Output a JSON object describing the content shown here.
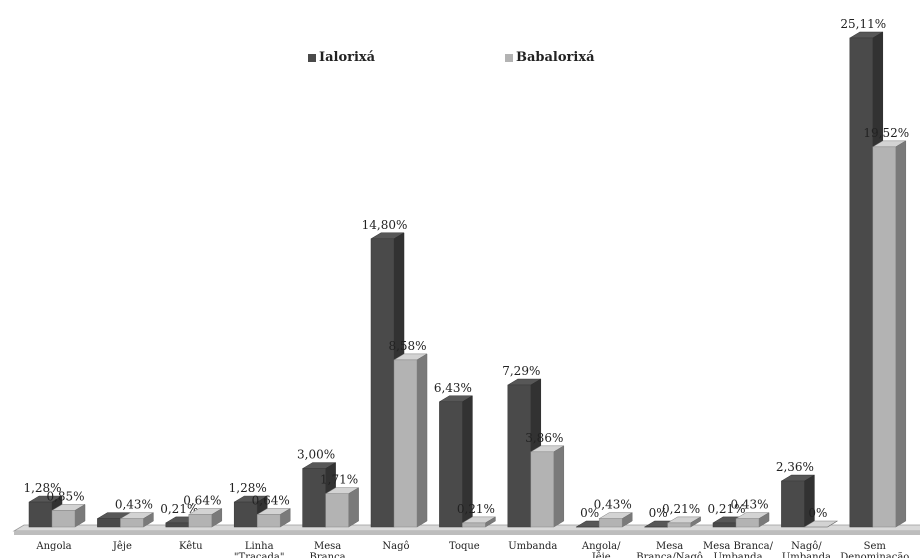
{
  "chart_data": {
    "type": "bar",
    "title": "",
    "xlabel": "",
    "ylabel": "",
    "ylim": [
      0,
      25.11
    ],
    "grid": false,
    "legend_position": "top",
    "categories": [
      [
        "Angola"
      ],
      [
        "Jêje"
      ],
      [
        "Kêtu"
      ],
      [
        "Linha",
        "\"Traçada\""
      ],
      [
        "Mesa",
        "Branca"
      ],
      [
        "Nagô"
      ],
      [
        "Toque"
      ],
      [
        "Umbanda"
      ],
      [
        "Angola/",
        "Jêje"
      ],
      [
        "Mesa",
        "Branca/Nagô"
      ],
      [
        "Mesa Branca/",
        "Umbanda"
      ],
      [
        "Nagô/",
        "Umbanda"
      ],
      [
        "Sem",
        "Denominação"
      ]
    ],
    "series": [
      {
        "name": "Ialorixá",
        "color": "#4a4a4a",
        "values": [
          1.28,
          0.43,
          0.21,
          1.28,
          3.0,
          14.8,
          6.43,
          7.29,
          0,
          0,
          0.21,
          2.36,
          25.11
        ],
        "labels": [
          "1,28%",
          "",
          "0,21%",
          "1,28%",
          "3,00%",
          "14,80%",
          "6,43%",
          "7,29%",
          "0%",
          "0%",
          "0,21%",
          "2,36%",
          "25,11%"
        ]
      },
      {
        "name": "Babalorixá",
        "color": "#b3b3b3",
        "values": [
          0.85,
          0.43,
          0.64,
          0.64,
          1.71,
          8.58,
          0.21,
          3.86,
          0.43,
          0.21,
          0.43,
          0,
          19.52
        ],
        "labels": [
          "0,85%",
          "0,43%",
          "0,64%",
          "0,64%",
          "1,71%",
          "8,58%",
          "0,21%",
          "3,86%",
          "0,43%",
          "0,21%",
          "0,43%",
          "0%",
          "19,52%"
        ]
      }
    ]
  }
}
